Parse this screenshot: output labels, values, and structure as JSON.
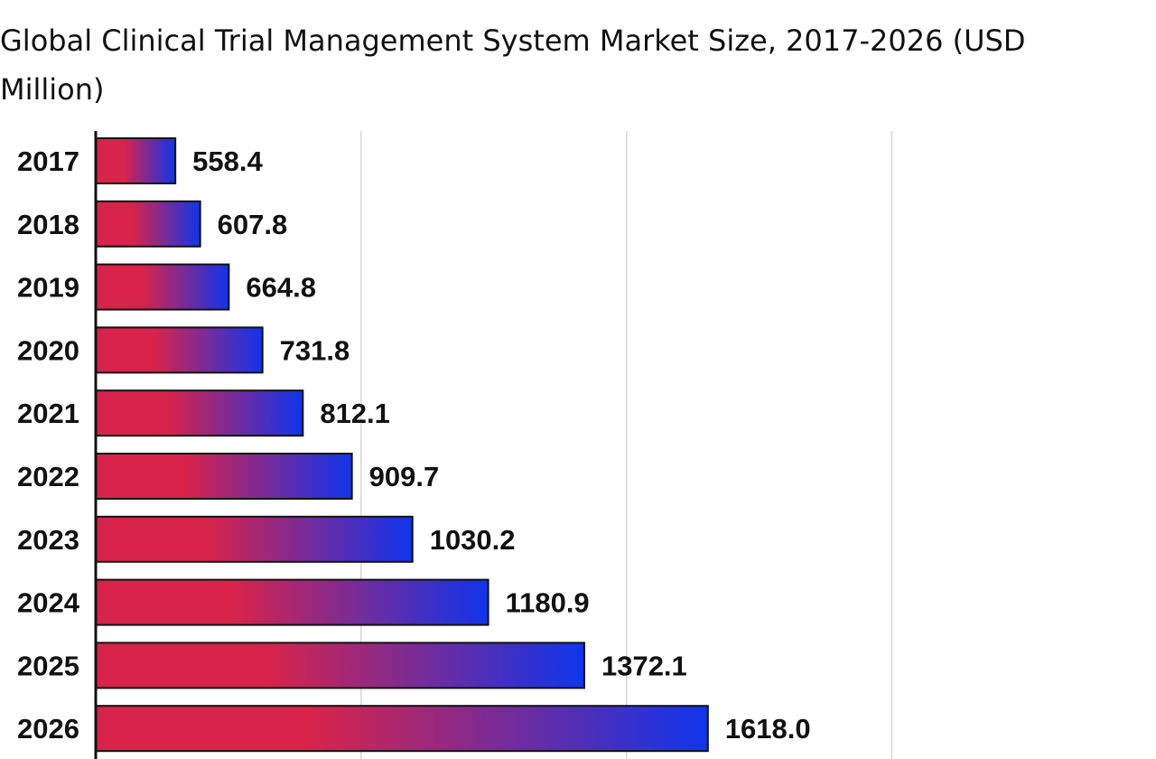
{
  "chart_data": {
    "type": "bar",
    "orientation": "horizontal",
    "title": "Global Clinical Trial Management System Market Size, 2017-2026 (USD Million)",
    "categories": [
      "2017",
      "2018",
      "2019",
      "2020",
      "2021",
      "2022",
      "2023",
      "2024",
      "2025",
      "2026"
    ],
    "values": [
      558.4,
      607.8,
      664.8,
      731.8,
      812.1,
      909.7,
      1030.2,
      1180.9,
      1372.1,
      1618.0
    ],
    "value_labels": [
      "558.4",
      "607.8",
      "664.8",
      "731.8",
      "812.1",
      "909.7",
      "1030.2",
      "1180.9",
      "1372.1",
      "1618.0"
    ],
    "xlim": [
      400,
      2000
    ],
    "grid": true,
    "gradient_colors": [
      "#d8234a",
      "#0f34ec"
    ]
  }
}
